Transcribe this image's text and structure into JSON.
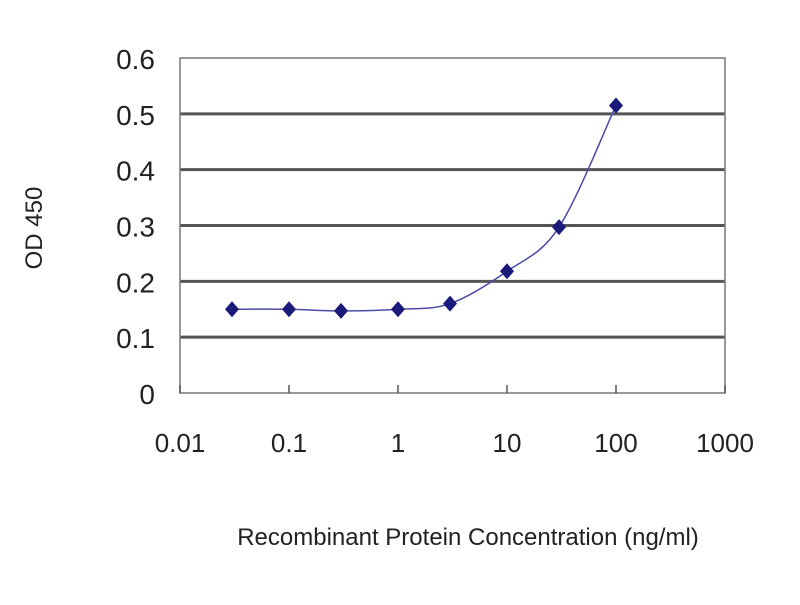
{
  "chart_data": {
    "type": "line",
    "title": "",
    "xlabel": "Recombinant Protein Concentration (ng/ml)",
    "ylabel": "OD 450",
    "xscale": "log",
    "xlim": [
      0.01,
      1000
    ],
    "ylim": [
      0,
      0.6
    ],
    "xticks": [
      "0.01",
      "0.1",
      "1",
      "10",
      "100",
      "1000"
    ],
    "yticks": [
      "0",
      "0.1",
      "0.2",
      "0.3",
      "0.4",
      "0.5",
      "0.6"
    ],
    "grid": "horizontal",
    "legend": "none",
    "series": [
      {
        "x": [
          0.03,
          0.1,
          0.3,
          1,
          3,
          10,
          30,
          100
        ],
        "y": [
          0.15,
          0.15,
          0.147,
          0.15,
          0.16,
          0.218,
          0.297,
          0.515
        ],
        "color": "#1a1a7a",
        "marker": "diamond",
        "smooth": true
      }
    ]
  }
}
